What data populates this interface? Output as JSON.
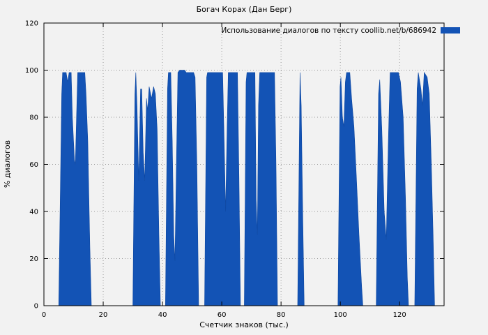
{
  "chart_data": {
    "type": "area",
    "title": "Богач Корах (Дан Берг)",
    "legend": "Использование диалогов по тексту coollib.net/b/686942",
    "xlabel": "Счетчик знаков (тыс.)",
    "ylabel": "% диалогов",
    "xlim": [
      0,
      135
    ],
    "ylim": [
      0,
      120
    ],
    "xticks": [
      0,
      20,
      40,
      60,
      80,
      100,
      120
    ],
    "yticks": [
      0,
      20,
      40,
      60,
      80,
      100,
      120
    ],
    "grid": true,
    "legend_position": "top-right-inside",
    "fill_color": "#1353b5",
    "stroke_color": "#0d47a1",
    "background_color": "#f2f2f2",
    "points": [
      [
        5,
        0
      ],
      [
        6,
        90
      ],
      [
        6.3,
        99
      ],
      [
        7.5,
        99
      ],
      [
        8,
        95
      ],
      [
        8.5,
        99
      ],
      [
        9.2,
        99
      ],
      [
        9.6,
        80
      ],
      [
        10.3,
        62
      ],
      [
        10.6,
        60
      ],
      [
        11,
        80
      ],
      [
        11.4,
        99
      ],
      [
        13.8,
        99
      ],
      [
        14.2,
        90
      ],
      [
        14.8,
        70
      ],
      [
        15.5,
        25
      ],
      [
        16,
        0
      ],
      [
        30,
        0
      ],
      [
        30.7,
        90
      ],
      [
        31,
        99
      ],
      [
        31.4,
        85
      ],
      [
        32,
        53
      ],
      [
        32.6,
        92
      ],
      [
        33,
        92
      ],
      [
        33.5,
        65
      ],
      [
        34,
        53
      ],
      [
        34.6,
        88
      ],
      [
        35,
        83
      ],
      [
        35.5,
        93
      ],
      [
        36.3,
        88
      ],
      [
        37,
        93
      ],
      [
        37.6,
        90
      ],
      [
        38.2,
        75
      ],
      [
        38.8,
        30
      ],
      [
        39.3,
        0
      ],
      [
        41,
        0
      ],
      [
        41.7,
        92
      ],
      [
        42,
        99
      ],
      [
        42.8,
        99
      ],
      [
        43.3,
        70
      ],
      [
        43.8,
        30
      ],
      [
        44.2,
        19
      ],
      [
        44.7,
        60
      ],
      [
        45.2,
        99
      ],
      [
        45.8,
        100
      ],
      [
        47.5,
        100
      ],
      [
        48,
        99
      ],
      [
        50.5,
        99
      ],
      [
        51,
        97
      ],
      [
        51.6,
        60
      ],
      [
        52.2,
        0
      ],
      [
        54.2,
        0
      ],
      [
        54.9,
        97
      ],
      [
        55.2,
        99
      ],
      [
        60.3,
        99
      ],
      [
        60.8,
        70
      ],
      [
        61.3,
        40
      ],
      [
        61.8,
        75
      ],
      [
        62.2,
        99
      ],
      [
        65.3,
        99
      ],
      [
        65.8,
        55
      ],
      [
        66.3,
        0
      ],
      [
        67.6,
        0
      ],
      [
        68.2,
        95
      ],
      [
        68.5,
        99
      ],
      [
        71.2,
        99
      ],
      [
        71.6,
        45
      ],
      [
        72,
        30
      ],
      [
        72.4,
        85
      ],
      [
        72.8,
        99
      ],
      [
        77.8,
        99
      ],
      [
        78.3,
        60
      ],
      [
        78.8,
        0
      ],
      [
        85.6,
        0
      ],
      [
        86.4,
        99
      ],
      [
        86.8,
        85
      ],
      [
        87.3,
        40
      ],
      [
        87.8,
        0
      ],
      [
        99.2,
        0
      ],
      [
        99.9,
        93
      ],
      [
        100.2,
        97
      ],
      [
        100.7,
        80
      ],
      [
        101.2,
        76
      ],
      [
        101.7,
        95
      ],
      [
        102.1,
        99
      ],
      [
        103.2,
        99
      ],
      [
        103.8,
        88
      ],
      [
        104.6,
        76
      ],
      [
        105.4,
        55
      ],
      [
        106.3,
        30
      ],
      [
        107.2,
        8
      ],
      [
        107.6,
        0
      ],
      [
        112.1,
        0
      ],
      [
        112.9,
        90
      ],
      [
        113.3,
        96
      ],
      [
        114,
        75
      ],
      [
        114.8,
        40
      ],
      [
        115.5,
        28
      ],
      [
        116.2,
        70
      ],
      [
        116.8,
        99
      ],
      [
        119.6,
        99
      ],
      [
        120.3,
        95
      ],
      [
        121.2,
        80
      ],
      [
        122,
        45
      ],
      [
        122.6,
        12
      ],
      [
        123,
        0
      ],
      [
        125.1,
        0
      ],
      [
        125.9,
        92
      ],
      [
        126.3,
        99
      ],
      [
        127.2,
        92
      ],
      [
        127.7,
        85
      ],
      [
        128.3,
        99
      ],
      [
        129.3,
        97
      ],
      [
        130,
        90
      ],
      [
        130.7,
        60
      ],
      [
        131.3,
        30
      ],
      [
        131.8,
        0
      ]
    ]
  }
}
